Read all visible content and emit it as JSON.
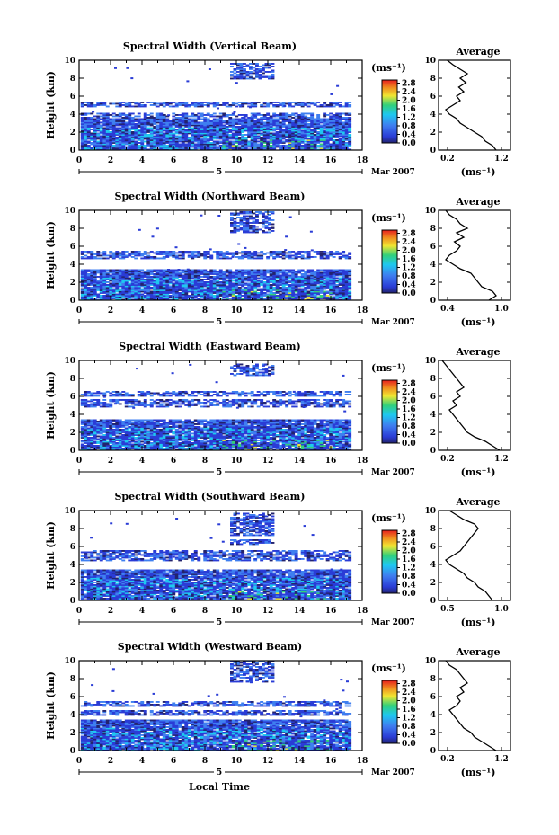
{
  "figure": {
    "x_axis_label": "Local Time",
    "date_label": "Mar 2007",
    "day_label": "5",
    "y_axis_label": "Height (km)",
    "avg_title": "Average",
    "unit_label": "(ms⁻¹)",
    "avg_xlabel": "(ms⁻¹)",
    "colorbar_ticks": [
      "0.0",
      "0.4",
      "0.8",
      "1.2",
      "1.6",
      "2.0",
      "2.4",
      "2.8"
    ],
    "x_ticks": [
      "0",
      "2",
      "4",
      "6",
      "8",
      "10",
      "12",
      "14",
      "16",
      "18"
    ],
    "y_ticks": [
      "0",
      "2",
      "4",
      "6",
      "8",
      "10"
    ],
    "colors": {
      "dark_navy": "#23236e",
      "blue": "#2a3cd6",
      "light_blue": "#3f7ff0",
      "cyan": "#1ec8f0",
      "green": "#32d07a",
      "yellow": "#f0e632",
      "orange": "#f08c1e",
      "red": "#e61e1e"
    }
  },
  "chart_data": [
    {
      "type": "heatmap",
      "title": "Spectral Width (Vertical Beam)",
      "xlim": [
        0,
        18
      ],
      "ylim": [
        0,
        10
      ],
      "colorbar_range": [
        0.0,
        2.8
      ],
      "layers_km": [
        [
          0.0,
          3.2
        ],
        [
          3.4,
          4.0
        ],
        [
          4.8,
          5.3
        ],
        [
          7.9,
          9.6
        ]
      ],
      "average": {
        "xlim": [
          0.2,
          1.2
        ],
        "x_ticks": [
          "0.2",
          "1.2"
        ],
        "height_km": [
          0,
          0.5,
          1,
          1.5,
          2,
          2.5,
          3,
          3.5,
          4,
          4.5,
          5,
          5.5,
          6,
          6.5,
          7,
          7.5,
          8,
          8.5,
          9,
          9.5,
          10
        ],
        "values": [
          1.0,
          0.95,
          0.85,
          0.8,
          0.7,
          0.6,
          0.5,
          0.45,
          0.35,
          0.3,
          0.4,
          0.5,
          0.45,
          0.55,
          0.48,
          0.58,
          0.5,
          0.6,
          0.5,
          0.4,
          0.32
        ]
      }
    },
    {
      "type": "heatmap",
      "title": "Spectral Width (Northward Beam)",
      "xlim": [
        0,
        18
      ],
      "ylim": [
        0,
        10
      ],
      "colorbar_range": [
        0.0,
        2.8
      ],
      "layers_km": [
        [
          0.0,
          3.3
        ],
        [
          4.6,
          5.4
        ],
        [
          7.5,
          9.8
        ]
      ],
      "average": {
        "xlim": [
          0.2,
          1.2
        ],
        "x_ticks": [
          "0.4",
          "1.0"
        ],
        "height_km": [
          0,
          0.5,
          1,
          1.5,
          2,
          2.5,
          3,
          3.5,
          4,
          4.5,
          5,
          5.5,
          6,
          6.5,
          7,
          7.5,
          8,
          8.5,
          9,
          9.5,
          10
        ],
        "values": [
          0.9,
          1.0,
          0.95,
          0.8,
          0.75,
          0.7,
          0.65,
          0.5,
          0.4,
          0.3,
          0.35,
          0.45,
          0.5,
          0.42,
          0.55,
          0.45,
          0.6,
          0.5,
          0.45,
          0.35,
          0.3
        ]
      }
    },
    {
      "type": "heatmap",
      "title": "Spectral Width (Eastward Beam)",
      "xlim": [
        0,
        18
      ],
      "ylim": [
        0,
        10
      ],
      "colorbar_range": [
        0.0,
        2.8
      ],
      "layers_km": [
        [
          0.0,
          3.3
        ],
        [
          4.8,
          5.6
        ],
        [
          6.0,
          6.5
        ],
        [
          8.3,
          9.6
        ]
      ],
      "average": {
        "xlim": [
          0.2,
          1.2
        ],
        "x_ticks": [
          "0.2",
          "1.2"
        ],
        "height_km": [
          0,
          0.5,
          1,
          1.5,
          2,
          2.5,
          3,
          3.5,
          4,
          4.5,
          5,
          5.5,
          6,
          6.5,
          7,
          7.5,
          8,
          8.5,
          9,
          9.5,
          10
        ],
        "values": [
          1.05,
          0.95,
          0.85,
          0.7,
          0.6,
          0.55,
          0.5,
          0.45,
          0.4,
          0.35,
          0.45,
          0.4,
          0.5,
          0.45,
          0.55,
          0.5,
          0.45,
          0.4,
          0.35,
          0.3,
          0.25
        ]
      }
    },
    {
      "type": "heatmap",
      "title": "Spectral Width (Southward Beam)",
      "xlim": [
        0,
        18
      ],
      "ylim": [
        0,
        10
      ],
      "colorbar_range": [
        0.0,
        2.8
      ],
      "layers_km": [
        [
          0.0,
          3.4
        ],
        [
          4.4,
          5.5
        ],
        [
          6.2,
          6.7
        ],
        [
          7.2,
          9.7
        ]
      ],
      "average": {
        "xlim": [
          0.2,
          1.2
        ],
        "x_ticks": [
          "0.5",
          "1.0"
        ],
        "height_km": [
          0,
          0.5,
          1,
          1.5,
          2,
          2.5,
          3,
          3.5,
          4,
          4.5,
          5,
          5.5,
          6,
          6.5,
          7,
          7.5,
          8,
          8.5,
          9,
          9.5,
          10
        ],
        "values": [
          0.95,
          0.9,
          0.85,
          0.75,
          0.7,
          0.6,
          0.55,
          0.45,
          0.35,
          0.3,
          0.4,
          0.5,
          0.55,
          0.6,
          0.65,
          0.7,
          0.75,
          0.7,
          0.55,
          0.45,
          0.35
        ]
      }
    },
    {
      "type": "heatmap",
      "title": "Spectral Width (Westward Beam)",
      "xlim": [
        0,
        18
      ],
      "ylim": [
        0,
        10
      ],
      "colorbar_range": [
        0.0,
        2.8
      ],
      "layers_km": [
        [
          0.0,
          3.3
        ],
        [
          3.9,
          4.4
        ],
        [
          4.9,
          5.5
        ],
        [
          7.6,
          9.9
        ]
      ],
      "average": {
        "xlim": [
          0.2,
          1.2
        ],
        "x_ticks": [
          "0.2",
          "1.2"
        ],
        "height_km": [
          0,
          0.5,
          1,
          1.5,
          2,
          2.5,
          3,
          3.5,
          4,
          4.5,
          5,
          5.5,
          6,
          6.5,
          7,
          7.5,
          8,
          8.5,
          9,
          9.5,
          10
        ],
        "values": [
          1.0,
          0.9,
          0.8,
          0.7,
          0.65,
          0.55,
          0.5,
          0.45,
          0.4,
          0.35,
          0.45,
          0.5,
          0.45,
          0.55,
          0.5,
          0.6,
          0.55,
          0.5,
          0.45,
          0.35,
          0.3
        ]
      }
    }
  ]
}
